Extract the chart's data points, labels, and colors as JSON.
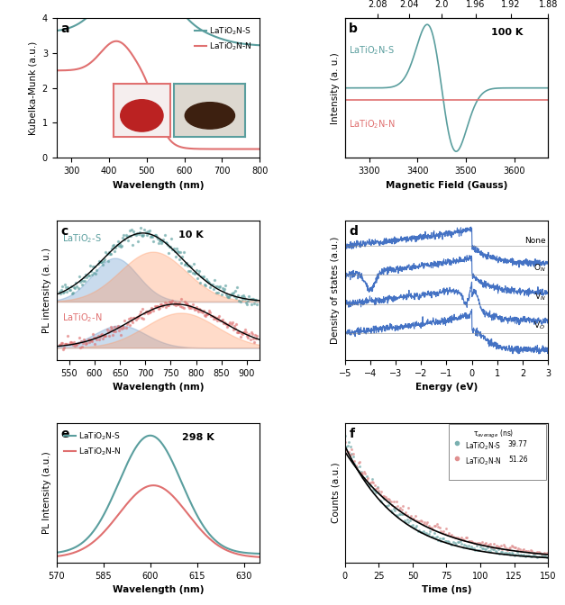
{
  "fig_width": 6.27,
  "fig_height": 6.72,
  "panel_a": {
    "label": "a",
    "xlabel": "Wavelength (nm)",
    "ylabel": "Kubelka-Munk (a.u.)",
    "xlim": [
      260,
      800
    ],
    "ylim": [
      0,
      4.0
    ],
    "yticks": [
      0,
      1,
      2,
      3,
      4
    ],
    "xticks": [
      300,
      400,
      500,
      600,
      700,
      800
    ],
    "color_S": "#5a9e9e",
    "color_N": "#e07070",
    "legend_S": "LaTiO$_2$N-S",
    "legend_N": "LaTiO$_2$N-N"
  },
  "panel_b": {
    "label": "b",
    "xlabel": "Magnetic Field (Gauss)",
    "ylabel": "Intensity (a. u.)",
    "xlim": [
      3250,
      3670
    ],
    "xticks": [
      3300,
      3400,
      3500,
      3600
    ],
    "top_ticks": [
      2.08,
      2.04,
      2.0,
      1.96,
      1.92,
      1.88
    ],
    "annotation": "100 K",
    "color_S": "#5a9e9e",
    "color_N": "#e07070",
    "label_S": "LaTiO$_2$N-S",
    "label_N": "LaTiO$_2$N-N"
  },
  "panel_c": {
    "label": "c",
    "xlabel": "Wavelength (nm)",
    "ylabel": "PL intensity (a. u.)",
    "xlim": [
      525,
      925
    ],
    "xticks": [
      550,
      600,
      650,
      700,
      750,
      800,
      850,
      900
    ],
    "annotation": "10 K",
    "color_S": "#5a9e9e",
    "color_N": "#e07070",
    "label_S": "LaTiO$_2$-S",
    "label_N": "LaTiO$_2$-N"
  },
  "panel_d": {
    "label": "d",
    "xlabel": "Energy (eV)",
    "ylabel": "Density of states (a.u.)",
    "xlim": [
      -5,
      3
    ],
    "xticks": [
      -5,
      -4,
      -3,
      -2,
      -1,
      0,
      1,
      2,
      3
    ],
    "color_line": "#4472c4",
    "labels": [
      "None",
      "O$_N$",
      "V$_N$",
      "V$_O$"
    ]
  },
  "panel_e": {
    "label": "e",
    "xlabel": "Wavelength (nm)",
    "ylabel": "PL Intensity (a.u.)",
    "xlim": [
      570,
      635
    ],
    "xticks": [
      570,
      585,
      600,
      615,
      630
    ],
    "annotation": "298 K",
    "color_S": "#5a9e9e",
    "color_N": "#e07070",
    "legend_S": "LaTiO$_2$N-S",
    "legend_N": "LaTiO$_2$N-N"
  },
  "panel_f": {
    "label": "f",
    "xlabel": "Time (ns)",
    "ylabel": "Counts (a.u.)",
    "xlim": [
      0,
      150
    ],
    "xticks": [
      0,
      25,
      50,
      75,
      100,
      125,
      150
    ],
    "color_S": "#7ab0b0",
    "color_N": "#e09090",
    "tau_S": "39.77",
    "tau_N": "51.26",
    "legend_S": "LaTiO$_2$N-S",
    "legend_N": "LaTiO$_2$N-N",
    "tau_label": "τ$_{average}$ (ns)"
  }
}
